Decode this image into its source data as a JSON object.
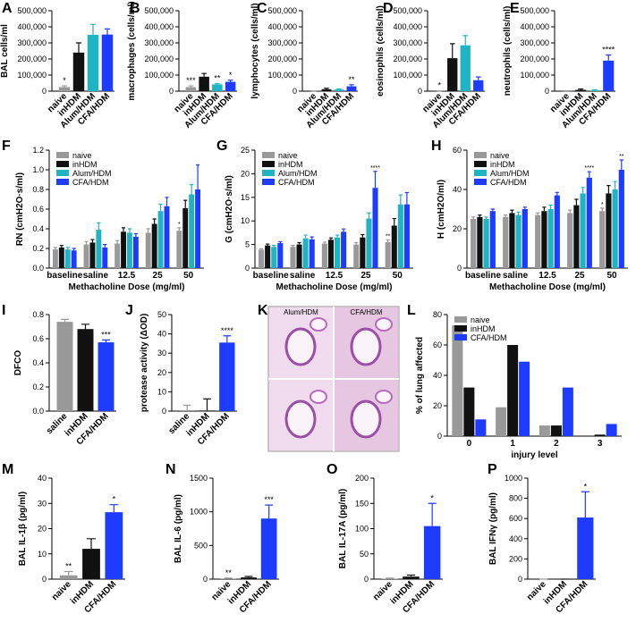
{
  "chart_data": [
    {
      "type": "bar",
      "panel": "A",
      "y_label": "BAL cells/ml",
      "categories": [
        "naive",
        "inHDM",
        "Alum/HDM",
        "CFA/HDM"
      ],
      "values": [
        25000,
        240000,
        350000,
        352000
      ],
      "errors": [
        8000,
        60000,
        65000,
        35000
      ],
      "colors": [
        "#999999",
        "#111111",
        "#1fb4c4",
        "#1e3cff"
      ],
      "annotations": [
        "*",
        null,
        null,
        null
      ],
      "ylim": [
        0,
        500000
      ],
      "yticks": [
        0,
        {
          "value": 100000,
          "label": "100,000"
        },
        {
          "value": 200000,
          "label": "200,000"
        },
        {
          "value": 300000,
          "label": "300,000"
        },
        {
          "value": 400000,
          "label": "400,000"
        },
        {
          "value": 500000,
          "label": "500,000"
        }
      ]
    },
    {
      "type": "bar",
      "panel": "B",
      "y_label": "macrophages (cells/ml)",
      "categories": [
        "naive",
        "inHDM",
        "Alum/HDM",
        "CFA/HDM"
      ],
      "values": [
        25000,
        90000,
        42000,
        58000
      ],
      "errors": [
        8000,
        20000,
        5000,
        10000
      ],
      "colors": [
        "#999999",
        "#111111",
        "#1fb4c4",
        "#1e3cff"
      ],
      "annotations": [
        "***",
        null,
        "**",
        "*"
      ],
      "ylim": [
        0,
        500000
      ],
      "yticks": [
        0,
        {
          "value": 100000,
          "label": "100,000"
        },
        {
          "value": 200000,
          "label": "200,000"
        },
        {
          "value": 300000,
          "label": "300,000"
        },
        {
          "value": 400000,
          "label": "400,000"
        },
        {
          "value": 500000,
          "label": "500,000"
        }
      ]
    },
    {
      "type": "bar",
      "panel": "C",
      "y_label": "lymphocytes (cells/ml)",
      "categories": [
        "naive",
        "inHDM",
        "Alum/HDM",
        "CFA/HDM"
      ],
      "values": [
        1000,
        12000,
        10000,
        30000
      ],
      "errors": [
        500,
        6000,
        3000,
        10000
      ],
      "colors": [
        "#999999",
        "#111111",
        "#1fb4c4",
        "#1e3cff"
      ],
      "annotations": [
        null,
        null,
        null,
        "**"
      ],
      "ylim": [
        0,
        500000
      ],
      "yticks": [
        0,
        {
          "value": 100000,
          "label": "100,000"
        },
        {
          "value": 200000,
          "label": "200,000"
        },
        {
          "value": 300000,
          "label": "300,000"
        },
        {
          "value": 400000,
          "label": "400,000"
        },
        {
          "value": 500000,
          "label": "500,000"
        }
      ]
    },
    {
      "type": "bar",
      "panel": "D",
      "y_label": "eosinophils (cells/ml)",
      "categories": [
        "naive",
        "inHDM",
        "Alum/HDM",
        "CFA/HDM"
      ],
      "values": [
        1000,
        205000,
        285000,
        68000
      ],
      "errors": [
        500,
        90000,
        60000,
        20000
      ],
      "colors": [
        "#999999",
        "#111111",
        "#1fb4c4",
        "#1e3cff"
      ],
      "annotations": [
        "*",
        null,
        null,
        null
      ],
      "ylim": [
        0,
        500000
      ],
      "yticks": [
        0,
        {
          "value": 100000,
          "label": "100,000"
        },
        {
          "value": 200000,
          "label": "200,000"
        },
        {
          "value": 300000,
          "label": "300,000"
        },
        {
          "value": 400000,
          "label": "400,000"
        },
        {
          "value": 500000,
          "label": "500,000"
        }
      ]
    },
    {
      "type": "bar",
      "panel": "E",
      "y_label": "neutrophils (cells/ml)",
      "categories": [
        "naive",
        "inHDM",
        "Alum/HDM",
        "CFA/HDM"
      ],
      "values": [
        1000,
        8000,
        5000,
        190000
      ],
      "errors": [
        1000,
        5000,
        3000,
        35000
      ],
      "colors": [
        "#999999",
        "#111111",
        "#1fb4c4",
        "#1e3cff"
      ],
      "annotations": [
        null,
        null,
        null,
        "****"
      ],
      "ylim": [
        0,
        500000
      ],
      "yticks": [
        0,
        {
          "value": 100000,
          "label": "100,000"
        },
        {
          "value": 200000,
          "label": "200,000"
        },
        {
          "value": 300000,
          "label": "300,000"
        },
        {
          "value": 400000,
          "label": "400,000"
        },
        {
          "value": 500000,
          "label": "500,000"
        }
      ]
    },
    {
      "type": "grouped",
      "panel": "F",
      "y_label": "RN (cmH2O·s/ml)",
      "x_label": "Methacholine Dose (mg/ml)",
      "categories": [
        "baseline",
        "saline",
        "12.5",
        "25",
        "50"
      ],
      "series": [
        {
          "name": "naive",
          "color": "#999999",
          "values": [
            0.19,
            0.24,
            0.25,
            0.36,
            0.38
          ],
          "errors": [
            0.02,
            0.03,
            0.03,
            0.04,
            0.03
          ],
          "annotations": [
            null,
            null,
            null,
            null,
            "*"
          ]
        },
        {
          "name": "inHDM",
          "color": "#111111",
          "values": [
            0.21,
            0.26,
            0.37,
            0.45,
            0.61
          ],
          "errors": [
            0.02,
            0.03,
            0.04,
            0.05,
            0.08
          ],
          "annotations": [
            null,
            null,
            null,
            null,
            null
          ]
        },
        {
          "name": "Alum/HDM",
          "color": "#1fb4c4",
          "values": [
            0.19,
            0.39,
            0.36,
            0.58,
            0.75
          ],
          "errors": [
            0.02,
            0.07,
            0.04,
            0.07,
            0.1
          ],
          "annotations": [
            null,
            null,
            null,
            null,
            null
          ]
        },
        {
          "name": "CFA/HDM",
          "color": "#1e3cff",
          "values": [
            0.18,
            0.21,
            0.32,
            0.63,
            0.8
          ],
          "errors": [
            0.02,
            0.03,
            0.03,
            0.09,
            0.25
          ],
          "annotations": [
            null,
            null,
            null,
            null,
            null
          ]
        }
      ],
      "ylim": [
        0,
        1.2
      ],
      "yticks": [
        {
          "value": 0,
          "label": "0.0"
        },
        0.2,
        0.4,
        0.6,
        0.8,
        {
          "value": 1,
          "label": "1.0"
        },
        1.2
      ]
    },
    {
      "type": "grouped",
      "panel": "G",
      "y_label": "G (cmH2O·s/ml)",
      "x_label": "Methacholine Dose (mg/ml)",
      "categories": [
        "baseline",
        "saline",
        "12.5",
        "25",
        "50"
      ],
      "series": [
        {
          "name": "naive",
          "color": "#999999",
          "values": [
            3.9,
            4.5,
            5.2,
            5.0,
            5.5
          ],
          "errors": [
            0.2,
            0.3,
            0.3,
            0.4,
            0.5
          ],
          "annotations": [
            null,
            null,
            null,
            null,
            "**"
          ]
        },
        {
          "name": "inHDM",
          "color": "#111111",
          "values": [
            4.8,
            5.0,
            6.0,
            6.5,
            9.0
          ],
          "errors": [
            0.3,
            0.4,
            0.4,
            0.6,
            1.5
          ],
          "annotations": [
            null,
            null,
            null,
            null,
            null
          ]
        },
        {
          "name": "Alum/HDM",
          "color": "#1fb4c4",
          "values": [
            4.5,
            6.3,
            6.5,
            10.5,
            13.5
          ],
          "errors": [
            0.3,
            0.7,
            0.5,
            1.2,
            2.0
          ],
          "annotations": [
            null,
            null,
            null,
            null,
            null
          ]
        },
        {
          "name": "CFA/HDM",
          "color": "#1e3cff",
          "values": [
            5.3,
            6.1,
            7.7,
            17.0,
            13.5
          ],
          "errors": [
            0.3,
            0.5,
            0.6,
            3.5,
            2.5
          ],
          "annotations": [
            null,
            null,
            null,
            "****",
            null
          ]
        }
      ],
      "ylim": [
        0,
        25
      ],
      "yticks": [
        0,
        5,
        10,
        15,
        20,
        25
      ]
    },
    {
      "type": "grouped",
      "panel": "H",
      "y_label": "H (cmH2O/ml)",
      "x_label": "Methacholine Dose (mg/ml)",
      "categories": [
        "baseline",
        "saline",
        "12.5",
        "25",
        "50"
      ],
      "series": [
        {
          "name": "naive",
          "color": "#999999",
          "values": [
            25,
            26,
            27,
            28,
            29
          ],
          "errors": [
            1,
            1,
            1,
            1.5,
            1.5
          ],
          "annotations": [
            null,
            null,
            null,
            null,
            "*"
          ]
        },
        {
          "name": "inHDM",
          "color": "#111111",
          "values": [
            26,
            28,
            29,
            32,
            38
          ],
          "errors": [
            1,
            1.5,
            2,
            3,
            4
          ],
          "annotations": [
            null,
            null,
            null,
            null,
            null
          ]
        },
        {
          "name": "Alum/HDM",
          "color": "#1fb4c4",
          "values": [
            25,
            27,
            30,
            38,
            40
          ],
          "errors": [
            1,
            1.5,
            2,
            3,
            4
          ],
          "annotations": [
            null,
            null,
            null,
            null,
            null
          ]
        },
        {
          "name": "CFA/HDM",
          "color": "#1e3cff",
          "values": [
            29,
            30,
            37,
            46,
            50
          ],
          "errors": [
            1,
            1,
            1.5,
            3,
            5
          ],
          "annotations": [
            null,
            null,
            null,
            "****",
            "**"
          ]
        }
      ],
      "ylim": [
        0,
        60
      ],
      "yticks": [
        0,
        20,
        40,
        60
      ]
    },
    {
      "type": "bar",
      "panel": "I",
      "y_label": "DFCO",
      "categories": [
        "saline",
        "inHDM",
        "CFA/HDM"
      ],
      "values": [
        0.74,
        0.68,
        0.57
      ],
      "errors": [
        0.02,
        0.04,
        0.02
      ],
      "colors": [
        "#999999",
        "#111111",
        "#1e3cff"
      ],
      "annotations": [
        null,
        null,
        "***"
      ],
      "ylim": [
        0,
        0.8
      ],
      "yticks": [
        {
          "value": 0,
          "label": "0.0"
        },
        0.2,
        0.4,
        0.6,
        0.8
      ]
    },
    {
      "type": "bar",
      "panel": "J",
      "y_label": "protease activity (ΔOD)",
      "categories": [
        "saline",
        "inHDM",
        "CFA/HDM"
      ],
      "values": [
        0.5,
        0.3,
        35.5
      ],
      "errors": [
        2.5,
        6,
        3.5
      ],
      "colors": [
        "#999999",
        "#111111",
        "#1e3cff"
      ],
      "annotations": [
        null,
        null,
        "****"
      ],
      "ylim": [
        0,
        50
      ],
      "yticks": [
        0,
        10,
        20,
        30,
        40,
        50
      ]
    },
    {
      "type": "image",
      "panel": "K",
      "labels": [
        "Alum/HDM",
        "CFA/HDM"
      ]
    },
    {
      "type": "grouped",
      "panel": "L",
      "y_label": "% of lung affected",
      "x_label": "injury level",
      "categories": [
        "0",
        "1",
        "2",
        "3"
      ],
      "series": [
        {
          "name": "naive",
          "color": "#999999",
          "values": [
            73,
            19,
            7,
            0
          ]
        },
        {
          "name": "inHDM",
          "color": "#111111",
          "values": [
            32,
            60,
            7,
            1
          ]
        },
        {
          "name": "CFA/HDM",
          "color": "#1e3cff",
          "values": [
            11,
            49,
            32,
            8
          ]
        }
      ],
      "ylim": [
        0,
        80
      ],
      "yticks": [
        0,
        20,
        40,
        60,
        80
      ]
    },
    {
      "type": "bar",
      "panel": "M",
      "y_label": "BAL IL-1β (pg/ml)",
      "categories": [
        "naive",
        "inHDM",
        "CFA/HDM"
      ],
      "values": [
        1.5,
        12,
        26.5
      ],
      "errors": [
        1.5,
        4,
        3
      ],
      "colors": [
        "#999999",
        "#111111",
        "#1e3cff"
      ],
      "annotations": [
        "**",
        null,
        "*"
      ],
      "ylim": [
        0,
        40
      ],
      "yticks": [
        0,
        10,
        20,
        30,
        40
      ]
    },
    {
      "type": "bar",
      "panel": "N",
      "y_label": "BAL IL-6 (pg/ml)",
      "categories": [
        "naive",
        "inHDM",
        "CFA/HDM"
      ],
      "values": [
        5,
        25,
        900
      ],
      "errors": [
        10,
        15,
        200
      ],
      "colors": [
        "#999999",
        "#111111",
        "#1e3cff"
      ],
      "annotations": [
        "**",
        null,
        "***"
      ],
      "ylim": [
        0,
        1500
      ],
      "yticks": [
        0,
        500,
        1000,
        1500
      ]
    },
    {
      "type": "bar",
      "panel": "O",
      "y_label": "BAL IL-17A (pg/ml)",
      "categories": [
        "naive",
        "inHDM",
        "CFA/HDM"
      ],
      "values": [
        1,
        5,
        105
      ],
      "errors": [
        1,
        3,
        45
      ],
      "colors": [
        "#999999",
        "#111111",
        "#1e3cff"
      ],
      "annotations": [
        null,
        null,
        "*"
      ],
      "ylim": [
        0,
        200
      ],
      "yticks": [
        0,
        50,
        100,
        150,
        200
      ]
    },
    {
      "type": "bar",
      "panel": "P",
      "y_label": "BAL IFNγ (pg/ml)",
      "categories": [
        "naive",
        "inHDM",
        "CFA/HDM"
      ],
      "values": [
        0,
        0,
        610
      ],
      "errors": [
        0,
        0,
        255
      ],
      "colors": [
        "#999999",
        "#111111",
        "#1e3cff"
      ],
      "annotations": [
        null,
        null,
        "*"
      ],
      "ylim": [
        0,
        1000
      ],
      "yticks": [
        0,
        200,
        400,
        600,
        800,
        1000
      ]
    }
  ]
}
